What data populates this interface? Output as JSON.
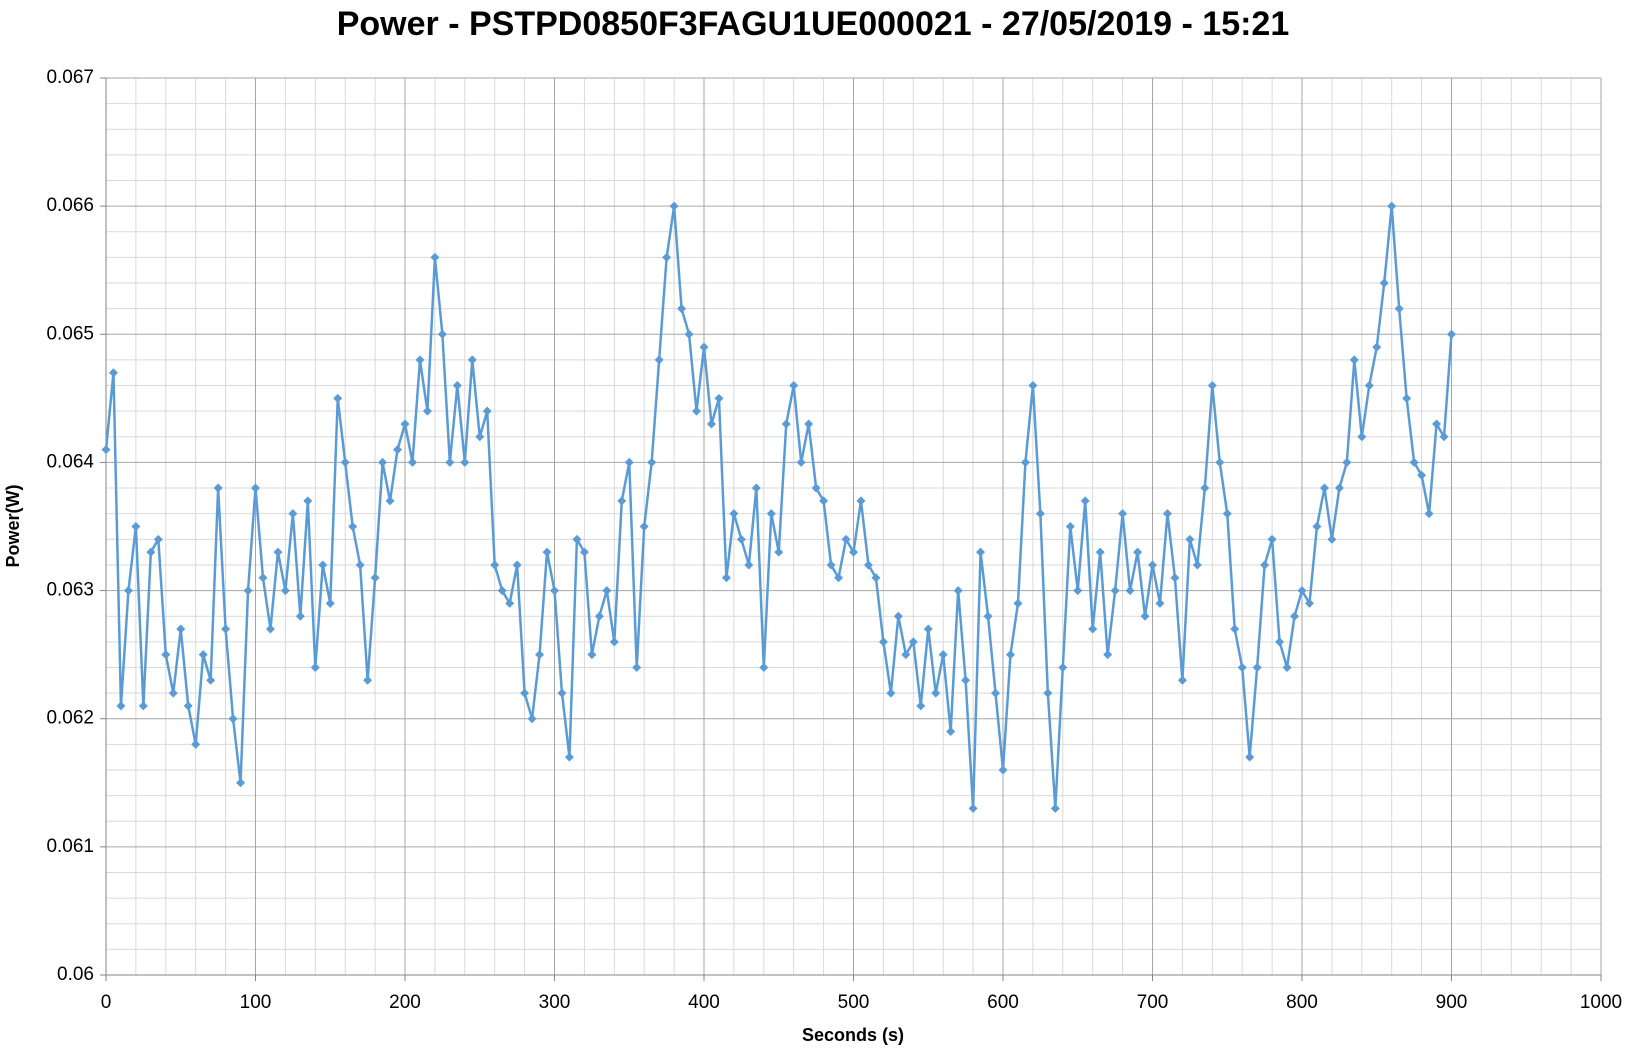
{
  "chart_data": {
    "type": "line",
    "title": "Power - PSTPD0850F3FAGU1UE000021 - 27/05/2019 - 15:21",
    "x_label": "Seconds (s)",
    "y_label": "Power(W)",
    "color": "#5b9bd5",
    "marker": "diamond",
    "grid": true,
    "xlim": [
      0,
      1000
    ],
    "xticks": [
      0,
      100,
      200,
      300,
      400,
      500,
      600,
      700,
      800,
      900,
      1000
    ],
    "ylim": [
      0.06,
      0.067
    ],
    "yticks": [
      0.06,
      0.061,
      0.062,
      0.063,
      0.064,
      0.065,
      0.066,
      0.067
    ],
    "x": [
      0,
      5,
      10,
      15,
      20,
      25,
      30,
      35,
      40,
      45,
      50,
      55,
      60,
      65,
      70,
      75,
      80,
      85,
      90,
      95,
      100,
      105,
      110,
      115,
      120,
      125,
      130,
      135,
      140,
      145,
      150,
      155,
      160,
      165,
      170,
      175,
      180,
      185,
      190,
      195,
      200,
      205,
      210,
      215,
      220,
      225,
      230,
      235,
      240,
      245,
      250,
      255,
      260,
      265,
      270,
      275,
      280,
      285,
      290,
      295,
      300,
      305,
      310,
      315,
      320,
      325,
      330,
      335,
      340,
      345,
      350,
      355,
      360,
      365,
      370,
      375,
      380,
      385,
      390,
      395,
      400,
      405,
      410,
      415,
      420,
      425,
      430,
      435,
      440,
      445,
      450,
      455,
      460,
      465,
      470,
      475,
      480,
      485,
      490,
      495,
      500,
      505,
      510,
      515,
      520,
      525,
      530,
      535,
      540,
      545,
      550,
      555,
      560,
      565,
      570,
      575,
      580,
      585,
      590,
      595,
      600,
      605,
      610,
      615,
      620,
      625,
      630,
      635,
      640,
      645,
      650,
      655,
      660,
      665,
      670,
      675,
      680,
      685,
      690,
      695,
      700,
      705,
      710,
      715,
      720,
      725,
      730,
      735,
      740,
      745,
      750,
      755,
      760,
      765,
      770,
      775,
      780,
      785,
      790,
      795,
      800,
      805,
      810,
      815,
      820,
      825,
      830,
      835,
      840,
      845,
      850,
      855,
      860,
      865,
      870,
      875,
      880,
      885,
      890,
      895,
      900
    ],
    "values": [
      0.0641,
      0.0647,
      0.0621,
      0.063,
      0.0635,
      0.0621,
      0.0633,
      0.0634,
      0.0625,
      0.0622,
      0.0627,
      0.0621,
      0.0618,
      0.0625,
      0.0623,
      0.0638,
      0.0627,
      0.062,
      0.0615,
      0.063,
      0.0638,
      0.0631,
      0.0627,
      0.0633,
      0.063,
      0.0636,
      0.0628,
      0.0637,
      0.0624,
      0.0632,
      0.0629,
      0.0645,
      0.064,
      0.0635,
      0.0632,
      0.0623,
      0.0631,
      0.064,
      0.0637,
      0.0641,
      0.0643,
      0.064,
      0.0648,
      0.0644,
      0.0656,
      0.065,
      0.064,
      0.0646,
      0.064,
      0.0648,
      0.0642,
      0.0644,
      0.0632,
      0.063,
      0.0629,
      0.0632,
      0.0622,
      0.062,
      0.0625,
      0.0633,
      0.063,
      0.0622,
      0.0617,
      0.0634,
      0.0633,
      0.0625,
      0.0628,
      0.063,
      0.0626,
      0.0637,
      0.064,
      0.0624,
      0.0635,
      0.064,
      0.0648,
      0.0656,
      0.066,
      0.0652,
      0.065,
      0.0644,
      0.0649,
      0.0643,
      0.0645,
      0.0631,
      0.0636,
      0.0634,
      0.0632,
      0.0638,
      0.0624,
      0.0636,
      0.0633,
      0.0643,
      0.0646,
      0.064,
      0.0643,
      0.0638,
      0.0637,
      0.0632,
      0.0631,
      0.0634,
      0.0633,
      0.0637,
      0.0632,
      0.0631,
      0.0626,
      0.0622,
      0.0628,
      0.0625,
      0.0626,
      0.0621,
      0.0627,
      0.0622,
      0.0625,
      0.0619,
      0.063,
      0.0623,
      0.0613,
      0.0633,
      0.0628,
      0.0622,
      0.0616,
      0.0625,
      0.0629,
      0.064,
      0.0646,
      0.0636,
      0.0622,
      0.0613,
      0.0624,
      0.0635,
      0.063,
      0.0637,
      0.0627,
      0.0633,
      0.0625,
      0.063,
      0.0636,
      0.063,
      0.0633,
      0.0628,
      0.0632,
      0.0629,
      0.0636,
      0.0631,
      0.0623,
      0.0634,
      0.0632,
      0.0638,
      0.0646,
      0.064,
      0.0636,
      0.0627,
      0.0624,
      0.0617,
      0.0624,
      0.0632,
      0.0634,
      0.0626,
      0.0624,
      0.0628,
      0.063,
      0.0629,
      0.0635,
      0.0638,
      0.0634,
      0.0638,
      0.064,
      0.0648,
      0.0642,
      0.0646,
      0.0649,
      0.0654,
      0.066,
      0.0652,
      0.0645,
      0.064,
      0.0639,
      0.0636,
      0.0643,
      0.0642,
      0.065
    ]
  }
}
